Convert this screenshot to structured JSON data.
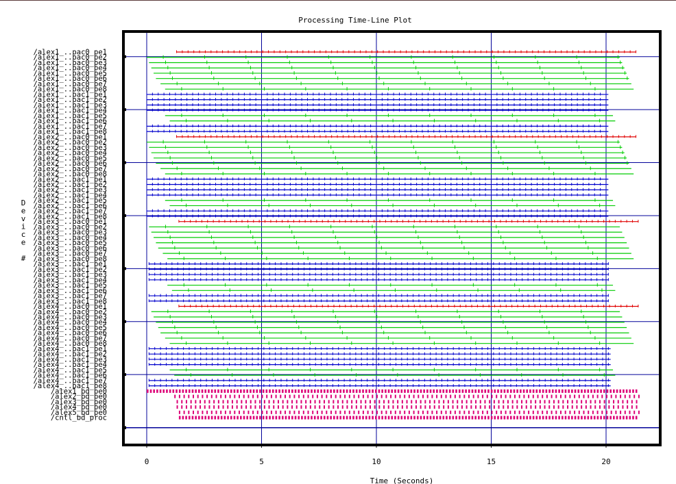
{
  "chart_data": {
    "type": "timeline",
    "title": "Processing Time-Line Plot",
    "xlabel": "Time (Seconds)",
    "ylabel": "Device #",
    "xlim": [
      0,
      21.5
    ],
    "x_ticks": [
      0,
      5,
      10,
      15,
      20
    ],
    "x_tick_labels": [
      "0",
      "5",
      "10",
      "15",
      "20"
    ],
    "grid": true,
    "colors": {
      "pe_first": "#e00000",
      "pe_green": "#00cc00",
      "pac1": "#0000cc",
      "bd": "#dd0077",
      "grid": "#000099",
      "frame": "#000000"
    },
    "devices": [
      "/alex1_..pac0_pe1",
      "/alex1_..pac0_pe2",
      "/alex1_..pac0_pe3",
      "/alex1_..pac0_pe4",
      "/alex1_..pac0_pe5",
      "/alex1_..pac0_pe6",
      "/alex1_..pac0_pe7",
      "/alex1_..pac0_pe8",
      "/alex1_..pac1_pe1",
      "/alex1_..pac1_pe2",
      "/alex1_..pac1_pe3",
      "/alex1_..pac1_pe4",
      "/alex1_..pac1_pe5",
      "/alex1_..pac1_pe6",
      "/alex1_..pac1_pe7",
      "/alex1_..pac1_pe8",
      "/alex2_..pac0_pe1",
      "/alex2_..pac0_pe2",
      "/alex2_..pac0_pe3",
      "/alex2_..pac0_pe4",
      "/alex2_..pac0_pe5",
      "/alex2_..pac0_pe6",
      "/alex2_..pac0_pe7",
      "/alex2_..pac0_pe8",
      "/alex2_..pac1_pe1",
      "/alex2_..pac1_pe2",
      "/alex2_..pac1_pe3",
      "/alex2_..pac1_pe4",
      "/alex2_..pac1_pe5",
      "/alex2_..pac1_pe6",
      "/alex2_..pac1_pe7",
      "/alex2_..pac1_pe8",
      "/alex3_..pac0_pe1",
      "/alex3_..pac0_pe2",
      "/alex3_..pac0_pe3",
      "/alex3_..pac0_pe4",
      "/alex3_..pac0_pe5",
      "/alex3_..pac0_pe6",
      "/alex3_..pac0_pe7",
      "/alex3_..pac0_pe8",
      "/alex3_..pac1_pe1",
      "/alex3_..pac1_pe2",
      "/alex3_..pac1_pe3",
      "/alex3_..pac1_pe4",
      "/alex3_..pac1_pe5",
      "/alex3_..pac1_pe6",
      "/alex3_..pac1_pe7",
      "/alex3_..pac1_pe8",
      "/alex4_..pac0_pe1",
      "/alex4_..pac0_pe2",
      "/alex4_..pac0_pe3",
      "/alex4_..pac0_pe4",
      "/alex4_..pac0_pe5",
      "/alex4_..pac0_pe6",
      "/alex4_..pac0_pe7",
      "/alex4_..pac0_pe8",
      "/alex4_..pac1_pe1",
      "/alex4_..pac1_pe2",
      "/alex4_..pac1_pe3",
      "/alex4_..pac1_pe4",
      "/alex4_..pac1_pe5",
      "/alex4_..pac1_pe6",
      "/alex4_..pac1_pe7",
      "/alex4_..pac1_pe8",
      "/alex1_bd_pe0",
      "/alex2_bd_pe0",
      "/alex3_bd_pe0",
      "/alex4_bd_pe0",
      "/alex5_bd_pe0",
      "/cntl_bd_proc"
    ],
    "series": [
      {
        "kind": "pe_first",
        "start": 1.3,
        "end": 21.3,
        "period": 0.25
      },
      {
        "kind": "pe_green",
        "start": 0.0,
        "end": 20.6,
        "period": 1.8
      },
      {
        "kind": "pe_green",
        "start": 0.1,
        "end": 20.7,
        "period": 1.8
      },
      {
        "kind": "pe_green",
        "start": 0.2,
        "end": 20.8,
        "period": 1.8
      },
      {
        "kind": "pe_green",
        "start": 0.3,
        "end": 20.9,
        "period": 1.8
      },
      {
        "kind": "pe_green",
        "start": 0.4,
        "end": 21.0,
        "period": 1.8
      },
      {
        "kind": "pe_green",
        "start": 0.6,
        "end": 21.1,
        "period": 1.8
      },
      {
        "kind": "pe_green",
        "start": 0.8,
        "end": 21.2,
        "period": 1.8
      },
      {
        "kind": "pac1",
        "start": 0.0,
        "end": 20.1,
        "period": 0.25
      },
      {
        "kind": "pac1",
        "start": 0.0,
        "end": 20.1,
        "period": 0.25
      },
      {
        "kind": "pac1",
        "start": 0.0,
        "end": 20.1,
        "period": 0.25
      },
      {
        "kind": "pac1",
        "start": 0.0,
        "end": 20.1,
        "period": 0.25
      },
      {
        "kind": "pe_green",
        "start": 0.8,
        "end": 20.3,
        "period": 1.8
      },
      {
        "kind": "pe_green",
        "start": 1.0,
        "end": 20.4,
        "period": 1.8
      },
      {
        "kind": "pac1",
        "start": 0.0,
        "end": 20.1,
        "period": 0.25
      },
      {
        "kind": "pac1",
        "start": 0.0,
        "end": 20.1,
        "period": 0.25
      },
      {
        "kind": "pe_first",
        "start": 1.3,
        "end": 21.3,
        "period": 0.25
      },
      {
        "kind": "pe_green",
        "start": 0.0,
        "end": 20.6,
        "period": 1.8
      },
      {
        "kind": "pe_green",
        "start": 0.1,
        "end": 20.7,
        "period": 1.8
      },
      {
        "kind": "pe_green",
        "start": 0.2,
        "end": 20.8,
        "period": 1.8
      },
      {
        "kind": "pe_green",
        "start": 0.3,
        "end": 20.9,
        "period": 1.8
      },
      {
        "kind": "pe_green",
        "start": 0.4,
        "end": 21.0,
        "period": 1.8
      },
      {
        "kind": "pe_green",
        "start": 0.6,
        "end": 21.1,
        "period": 1.8
      },
      {
        "kind": "pe_green",
        "start": 0.8,
        "end": 21.2,
        "period": 1.8
      },
      {
        "kind": "pac1",
        "start": 0.0,
        "end": 20.1,
        "period": 0.25
      },
      {
        "kind": "pac1",
        "start": 0.0,
        "end": 20.1,
        "period": 0.25
      },
      {
        "kind": "pac1",
        "start": 0.0,
        "end": 20.1,
        "period": 0.25
      },
      {
        "kind": "pac1",
        "start": 0.0,
        "end": 20.1,
        "period": 0.25
      },
      {
        "kind": "pe_green",
        "start": 0.8,
        "end": 20.3,
        "period": 1.8
      },
      {
        "kind": "pe_green",
        "start": 1.0,
        "end": 20.4,
        "period": 1.8
      },
      {
        "kind": "pac1",
        "start": 0.0,
        "end": 20.1,
        "period": 0.25
      },
      {
        "kind": "pac1",
        "start": 0.0,
        "end": 20.1,
        "period": 0.25
      },
      {
        "kind": "pe_first",
        "start": 1.4,
        "end": 21.4,
        "period": 0.25
      },
      {
        "kind": "pe_green",
        "start": 0.1,
        "end": 20.6,
        "period": 1.8
      },
      {
        "kind": "pe_green",
        "start": 0.2,
        "end": 20.7,
        "period": 1.8
      },
      {
        "kind": "pe_green",
        "start": 0.3,
        "end": 20.8,
        "period": 1.8
      },
      {
        "kind": "pe_green",
        "start": 0.4,
        "end": 20.9,
        "period": 1.8
      },
      {
        "kind": "pe_green",
        "start": 0.5,
        "end": 21.0,
        "period": 1.8
      },
      {
        "kind": "pe_green",
        "start": 0.7,
        "end": 21.1,
        "period": 1.8
      },
      {
        "kind": "pe_green",
        "start": 0.9,
        "end": 21.2,
        "period": 1.8
      },
      {
        "kind": "pac1",
        "start": 0.1,
        "end": 20.1,
        "period": 0.25
      },
      {
        "kind": "pac1",
        "start": 0.1,
        "end": 20.1,
        "period": 0.25
      },
      {
        "kind": "pac1",
        "start": 0.1,
        "end": 20.1,
        "period": 0.25
      },
      {
        "kind": "pac1",
        "start": 0.1,
        "end": 20.1,
        "period": 0.25
      },
      {
        "kind": "pe_green",
        "start": 0.9,
        "end": 20.3,
        "period": 1.8
      },
      {
        "kind": "pe_green",
        "start": 1.1,
        "end": 20.4,
        "period": 1.8
      },
      {
        "kind": "pac1",
        "start": 0.1,
        "end": 20.1,
        "period": 0.25
      },
      {
        "kind": "pac1",
        "start": 0.1,
        "end": 20.1,
        "period": 0.25
      },
      {
        "kind": "pe_first",
        "start": 1.4,
        "end": 21.4,
        "period": 0.25
      },
      {
        "kind": "pe_green",
        "start": 0.2,
        "end": 20.6,
        "period": 1.8
      },
      {
        "kind": "pe_green",
        "start": 0.3,
        "end": 20.7,
        "period": 1.8
      },
      {
        "kind": "pe_green",
        "start": 0.4,
        "end": 20.8,
        "period": 1.8
      },
      {
        "kind": "pe_green",
        "start": 0.5,
        "end": 20.9,
        "period": 1.8
      },
      {
        "kind": "pe_green",
        "start": 0.6,
        "end": 21.0,
        "period": 1.8
      },
      {
        "kind": "pe_green",
        "start": 0.8,
        "end": 21.1,
        "period": 1.8
      },
      {
        "kind": "pe_green",
        "start": 1.0,
        "end": 21.2,
        "period": 1.8
      },
      {
        "kind": "pac1",
        "start": 0.1,
        "end": 20.2,
        "period": 0.25
      },
      {
        "kind": "pac1",
        "start": 0.1,
        "end": 20.2,
        "period": 0.25
      },
      {
        "kind": "pac1",
        "start": 0.1,
        "end": 20.2,
        "period": 0.25
      },
      {
        "kind": "pac1",
        "start": 0.1,
        "end": 20.2,
        "period": 0.25
      },
      {
        "kind": "pe_green",
        "start": 1.0,
        "end": 20.3,
        "period": 1.8
      },
      {
        "kind": "pe_green",
        "start": 1.2,
        "end": 20.4,
        "period": 1.8
      },
      {
        "kind": "pac1",
        "start": 0.1,
        "end": 20.2,
        "period": 0.25
      },
      {
        "kind": "pac1",
        "start": 0.1,
        "end": 20.2,
        "period": 0.25
      },
      {
        "kind": "bd",
        "start": 0.0,
        "end": 21.4,
        "period": 0.14
      },
      {
        "kind": "bd",
        "start": 1.2,
        "end": 21.4,
        "period": 0.2
      },
      {
        "kind": "bd",
        "start": 1.3,
        "end": 21.4,
        "period": 0.2
      },
      {
        "kind": "bd",
        "start": 1.3,
        "end": 21.4,
        "period": 0.2
      },
      {
        "kind": "bd",
        "start": 1.4,
        "end": 21.4,
        "period": 0.2
      },
      {
        "kind": "bd",
        "start": 1.4,
        "end": 21.4,
        "period": 0.14
      }
    ]
  }
}
